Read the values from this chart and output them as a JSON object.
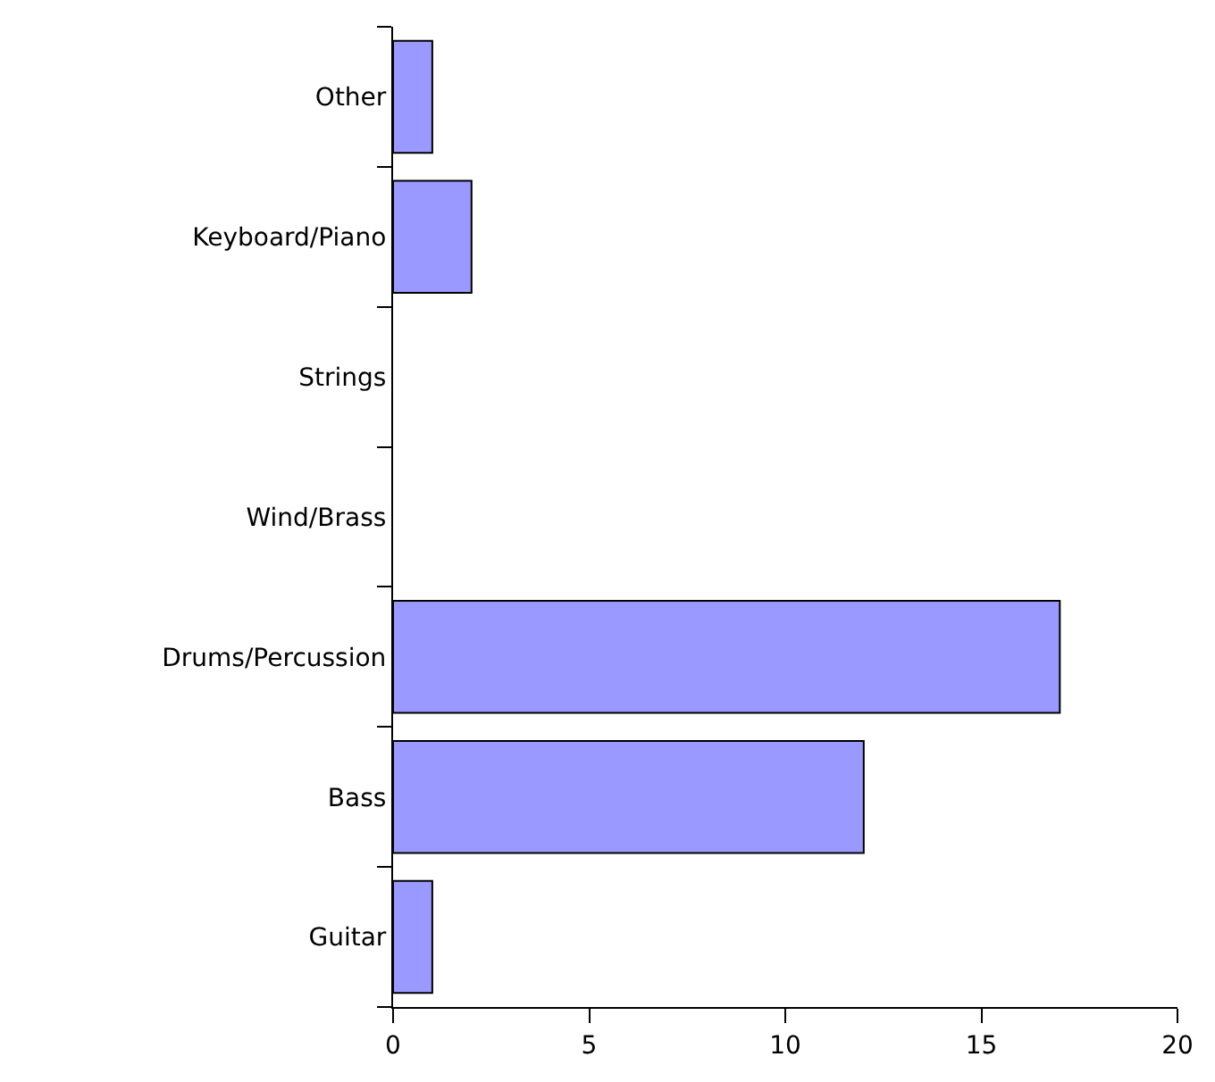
{
  "chart_data": {
    "type": "bar",
    "orientation": "horizontal",
    "categories": [
      "Other",
      "Keyboard/Piano",
      "Strings",
      "Wind/Brass",
      "Drums/Percussion",
      "Bass",
      "Guitar"
    ],
    "values": [
      1,
      2,
      0,
      0,
      17,
      12,
      1
    ],
    "color": "#9999ff",
    "xlim": [
      0,
      20
    ],
    "xticks": [
      0,
      5,
      10,
      15,
      20
    ]
  }
}
